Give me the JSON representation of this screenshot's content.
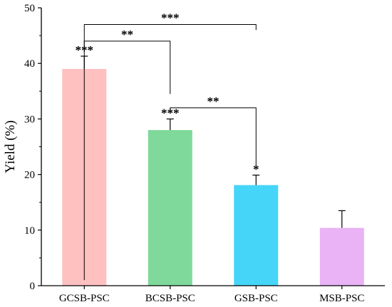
{
  "chart_data": {
    "type": "bar",
    "title": "",
    "xlabel": "",
    "ylabel": "Yield (%)",
    "ylim": [
      0,
      50
    ],
    "yticks": [
      0,
      10,
      20,
      30,
      40,
      50
    ],
    "categories": [
      "GCSB-PSC",
      "BCSB-PSC",
      "GSB-PSC",
      "MSB-PSC"
    ],
    "values": [
      39.0,
      28.0,
      18.1,
      10.4
    ],
    "errors": [
      2.3,
      2.0,
      1.8,
      3.1
    ],
    "colors": [
      "#FFC0C0",
      "#7FD99B",
      "#45D5F8",
      "#E9B3F6"
    ],
    "bar_annotations": [
      "***",
      "***",
      "*",
      ""
    ],
    "significance_brackets": [
      {
        "from": "GCSB-PSC",
        "to": "GSB-PSC",
        "label": "***",
        "y": 47.0,
        "drop_left": 1.0,
        "drop_right": 46.0
      },
      {
        "from": "GCSB-PSC",
        "to": "BCSB-PSC",
        "label": "**",
        "y": 44.0,
        "drop_left": 42.0,
        "drop_right": 34.5
      },
      {
        "from": "BCSB-PSC",
        "to": "GSB-PSC",
        "label": "**",
        "y": 32.0,
        "drop_left": 31.0,
        "drop_right": 21.5
      }
    ],
    "grid": false,
    "legend": "none"
  }
}
